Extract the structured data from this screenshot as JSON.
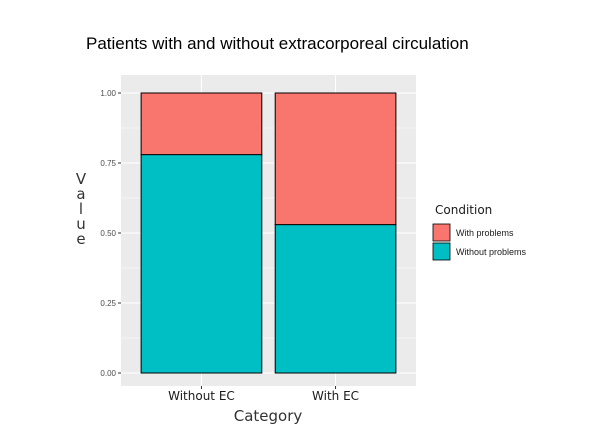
{
  "chart_data": {
    "type": "bar",
    "stacked": true,
    "title": "Patients with and without extracorporeal circulation",
    "xlabel": "Category",
    "ylabel": "Value",
    "categories": [
      "Without EC",
      "With EC"
    ],
    "series": [
      {
        "name": "Without problems",
        "values": [
          0.78,
          0.53
        ],
        "color": "#00BFC4"
      },
      {
        "name": "With problems",
        "values": [
          0.22,
          0.47
        ],
        "color": "#F8766D"
      }
    ],
    "ylim": [
      0,
      1
    ],
    "yticks": [
      "0.00",
      "0.25",
      "0.50",
      "0.75",
      "1.00"
    ],
    "grid": true,
    "panel_background": "#EBEBEB",
    "legend": {
      "title": "Condition",
      "placement": "right",
      "entries": [
        "With problems",
        "Without problems"
      ]
    }
  }
}
